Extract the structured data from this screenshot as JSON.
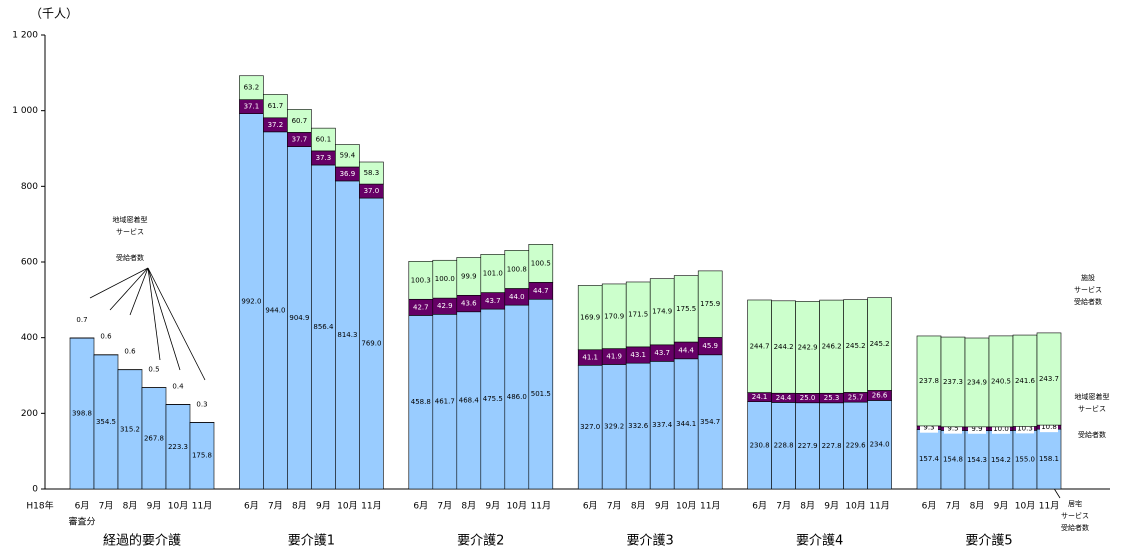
{
  "chart_data": {
    "type": "grouped_stacked_bar",
    "unit_label": "（千人）",
    "ylim": [
      0,
      1200
    ],
    "yticks": [
      0,
      200,
      400,
      600,
      800,
      {
        "value": 1000,
        "label": "1 000"
      },
      {
        "value": 1200,
        "label": "1 200"
      }
    ],
    "x_prefix": "H18年",
    "x_note": "審査分",
    "groups": [
      {
        "name": "経過的要介護",
        "categories": [
          "6月",
          "7月",
          "8月",
          "9月",
          "10月",
          "11月"
        ]
      },
      {
        "name": "要介護1",
        "categories": [
          "6月",
          "7月",
          "8月",
          "9月",
          "10月",
          "11月"
        ]
      },
      {
        "name": "要介護2",
        "categories": [
          "6月",
          "7月",
          "8月",
          "9月",
          "10月",
          "11月"
        ]
      },
      {
        "name": "要介護3",
        "categories": [
          "6月",
          "7月",
          "8月",
          "9月",
          "10月",
          "11月"
        ]
      },
      {
        "name": "要介護4",
        "categories": [
          "6月",
          "7月",
          "8月",
          "9月",
          "10月",
          "11月"
        ]
      },
      {
        "name": "要介護5",
        "categories": [
          "6月",
          "7月",
          "8月",
          "9月",
          "10月",
          "11月"
        ]
      }
    ],
    "series": [
      {
        "color": "#99ccff",
        "values": [
          [
            398.8,
            354.5,
            315.2,
            267.8,
            223.3,
            175.8
          ],
          [
            992,
            944,
            904.9,
            856.4,
            814.3,
            769
          ],
          [
            458.8,
            461.7,
            468.4,
            475.5,
            486,
            501.5
          ],
          [
            327,
            329.2,
            332.6,
            337.4,
            344.1,
            354.7
          ],
          [
            230.8,
            228.8,
            227.9,
            227.8,
            229.6,
            234
          ],
          [
            157.4,
            154.8,
            154.3,
            154.2,
            155,
            158.1
          ]
        ],
        "value_labels": [
          [
            "398.8",
            "354.5",
            "315.2",
            "267.8",
            "223.3",
            "175.8"
          ],
          [
            "992.0",
            "944.0",
            "904.9",
            "856.4",
            "814.3",
            "769.0"
          ],
          [
            "458.8",
            "461.7",
            "468.4",
            "475.5",
            "486.0",
            "501.5"
          ],
          [
            "327.0",
            "329.2",
            "332.6",
            "337.4",
            "344.1",
            "354.7"
          ],
          [
            "230.8",
            "228.8",
            "227.9",
            "227.8",
            "229.6",
            "234.0"
          ],
          [
            "157.4",
            "154.8",
            "154.3",
            "154.2",
            "155.0",
            "158.1"
          ]
        ]
      },
      {
        "color": "#660066",
        "values": [
          [
            0.7,
            0.6,
            0.6,
            0.5,
            0.4,
            0.3
          ],
          [
            37.1,
            37.2,
            37.7,
            37.3,
            36.9,
            37
          ],
          [
            42.7,
            42.9,
            43.6,
            43.7,
            44,
            44.7
          ],
          [
            41.1,
            41.9,
            43.1,
            43.7,
            44.4,
            45.9
          ],
          [
            24.1,
            24.4,
            25,
            25.3,
            25.7,
            26.6
          ],
          [
            9.3,
            9.5,
            9.9,
            10,
            10.3,
            10.8
          ]
        ],
        "value_labels": [
          [
            "0.7",
            "0.6",
            "0.6",
            "0.5",
            "0.4",
            "0.3"
          ],
          [
            "37.1",
            "37.2",
            "37.7",
            "37.3",
            "36.9",
            "37.0"
          ],
          [
            "42.7",
            "42.9",
            "43.6",
            "43.7",
            "44.0",
            "44.7"
          ],
          [
            "41.1",
            "41.9",
            "43.1",
            "43.7",
            "44.4",
            "45.9"
          ],
          [
            "24.1",
            "24.4",
            "25.0",
            "25.3",
            "25.7",
            "26.6"
          ],
          [
            "9.3",
            "9.5",
            "9.9",
            "10.0",
            "10.3",
            "10.8"
          ]
        ]
      },
      {
        "color": "#ccffcc",
        "values": [
          [
            null,
            null,
            null,
            null,
            null,
            null
          ],
          [
            63.2,
            61.7,
            60.7,
            60.1,
            59.4,
            58.3
          ],
          [
            100.3,
            100,
            99.9,
            101,
            100.8,
            100.5
          ],
          [
            169.9,
            170.9,
            171.5,
            174.9,
            175.5,
            175.9
          ],
          [
            244.7,
            244.2,
            242.9,
            246.2,
            245.2,
            245.2
          ],
          [
            237.8,
            237.3,
            234.9,
            240.5,
            241.6,
            243.7
          ]
        ],
        "value_labels": [
          [
            null,
            null,
            null,
            null,
            null,
            null
          ],
          [
            "63.2",
            "61.7",
            "60.7",
            "60.1",
            "59.4",
            "58.3"
          ],
          [
            "100.3",
            "100.0",
            "99.9",
            "101.0",
            "100.8",
            "100.5"
          ],
          [
            "169.9",
            "170.9",
            "171.5",
            "174.9",
            "175.5",
            "175.9"
          ],
          [
            "244.7",
            "244.2",
            "242.9",
            "246.2",
            "245.2",
            "245.2"
          ],
          [
            "237.8",
            "237.3",
            "234.9",
            "240.5",
            "241.6",
            "243.7"
          ]
        ]
      }
    ],
    "annotations": [
      {
        "lines": [
          "地域密着型",
          "サービス",
          "受給者数"
        ]
      },
      {
        "lines": [
          "施設",
          "サービス",
          "受給者数"
        ]
      },
      {
        "lines": [
          "地域密着型",
          "サービス",
          "受給者数"
        ]
      },
      {
        "lines": [
          "居宅",
          "サービス",
          "受給者数"
        ]
      }
    ]
  }
}
